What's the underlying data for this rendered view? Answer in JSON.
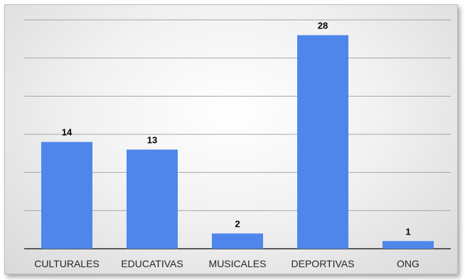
{
  "chart_data": {
    "type": "bar",
    "categories": [
      "CULTURALES",
      "EDUCATIVAS",
      "MUSICALES",
      "DEPORTIVAS",
      "ONG"
    ],
    "values": [
      14,
      13,
      2,
      28,
      1
    ],
    "title": "",
    "xlabel": "",
    "ylabel": "",
    "ylim": [
      0,
      30
    ],
    "grid": true,
    "legend": "none",
    "data_labels": [
      "14",
      "13",
      "2",
      "28",
      "1"
    ]
  },
  "colors": {
    "bar": "#4f86ec",
    "background": "#f2f2f2",
    "gridline": "#a6a6a6"
  }
}
